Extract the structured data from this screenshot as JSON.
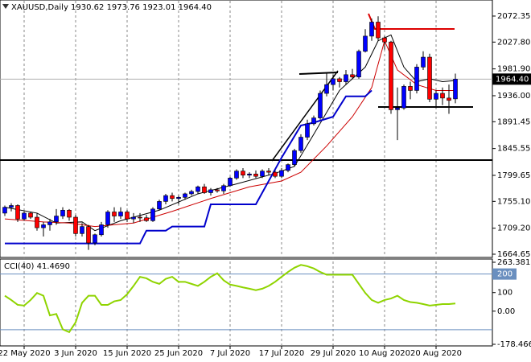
{
  "chart_data": [
    {
      "type": "candlestick",
      "title": "XAUUSD,Daily  1930.62 1973.76 1923.01 1964.40",
      "categories": [
        null,
        null,
        null,
        "22 May 2020",
        null,
        null,
        null,
        null,
        null,
        null,
        null,
        "3 Jun 2020",
        null,
        null,
        null,
        null,
        null,
        null,
        null,
        "15 Jun 2020",
        null,
        null,
        null,
        null,
        null,
        null,
        null,
        "25 Jun 2020",
        null,
        null,
        null,
        null,
        null,
        null,
        null,
        "7 Jul 2020",
        null,
        null,
        null,
        null,
        null,
        null,
        null,
        "17 Jul 2020",
        null,
        null,
        null,
        null,
        null,
        null,
        null,
        "29 Jul 2020",
        null,
        null,
        null,
        null,
        null,
        null,
        null,
        "10 Aug 2020",
        null,
        null,
        null,
        null,
        null,
        null,
        null,
        "20 Aug 2020",
        null,
        null,
        null
      ],
      "open": [
        1735,
        1745,
        1748,
        1725,
        1735,
        1728,
        1710,
        1715,
        1720,
        1730,
        1740,
        1728,
        1700,
        1712,
        1684,
        1698,
        1715,
        1737,
        1730,
        1737,
        1725,
        1728,
        1727,
        1722,
        1742,
        1755,
        1765,
        1760,
        1762,
        1768,
        1772,
        1780,
        1770,
        1775,
        1773,
        1782,
        1795,
        1807,
        1800,
        1802,
        1798,
        1807,
        1805,
        1798,
        1808,
        1818,
        1842,
        1865,
        1888,
        1898,
        1940,
        1955,
        1965,
        1960,
        1972,
        1968,
        2012,
        2038,
        2062,
        2035,
        2028,
        1912,
        1915,
        1952,
        1945,
        1985,
        2002,
        1930,
        1940,
        1932,
        1930.62
      ],
      "high": [
        1748,
        1752,
        1750,
        1738,
        1737,
        1735,
        1720,
        1725,
        1742,
        1745,
        1742,
        1732,
        1718,
        1715,
        1700,
        1720,
        1740,
        1745,
        1745,
        1740,
        1735,
        1735,
        1732,
        1745,
        1758,
        1768,
        1770,
        1765,
        1770,
        1775,
        1782,
        1785,
        1778,
        1778,
        1785,
        1797,
        1810,
        1812,
        1805,
        1808,
        1810,
        1812,
        1808,
        1812,
        1820,
        1845,
        1870,
        1895,
        1902,
        1945,
        1975,
        1972,
        1968,
        1980,
        1982,
        2015,
        2050,
        2068,
        2072,
        2038,
        2030,
        1950,
        1955,
        1960,
        1990,
        2012,
        2008,
        1945,
        1950,
        1955,
        1973.76
      ],
      "low": [
        1730,
        1738,
        1720,
        1722,
        1725,
        1705,
        1695,
        1705,
        1715,
        1725,
        1722,
        1695,
        1695,
        1672,
        1680,
        1695,
        1710,
        1720,
        1725,
        1720,
        1718,
        1720,
        1720,
        1720,
        1740,
        1750,
        1755,
        1750,
        1758,
        1765,
        1768,
        1768,
        1765,
        1770,
        1768,
        1780,
        1792,
        1795,
        1795,
        1795,
        1795,
        1800,
        1795,
        1795,
        1805,
        1815,
        1838,
        1860,
        1885,
        1895,
        1935,
        1945,
        1950,
        1955,
        1965,
        1965,
        2010,
        2030,
        2030,
        2015,
        1905,
        1860,
        1912,
        1930,
        1940,
        1980,
        1925,
        1915,
        1920,
        1905,
        1923.01
      ],
      "close": [
        1745,
        1748,
        1725,
        1735,
        1728,
        1710,
        1715,
        1720,
        1730,
        1740,
        1728,
        1700,
        1712,
        1684,
        1698,
        1715,
        1737,
        1730,
        1737,
        1725,
        1728,
        1727,
        1722,
        1742,
        1755,
        1765,
        1760,
        1762,
        1768,
        1772,
        1780,
        1770,
        1775,
        1773,
        1782,
        1795,
        1807,
        1800,
        1802,
        1798,
        1807,
        1805,
        1798,
        1808,
        1818,
        1842,
        1865,
        1888,
        1898,
        1940,
        1955,
        1965,
        1960,
        1972,
        1968,
        2012,
        2038,
        2062,
        2035,
        2028,
        1912,
        1915,
        1952,
        1945,
        1985,
        2002,
        1930,
        1940,
        1932,
        1928,
        1964.4
      ],
      "up_color": "#0000ff",
      "down_color": "#ff0000",
      "wick_color": "#000000",
      "overlays": [
        {
          "color": "#000000",
          "x": [
            0,
            5,
            8,
            12,
            14,
            18,
            24,
            30,
            36,
            42,
            45,
            48,
            52,
            56,
            58,
            60,
            62,
            64,
            66,
            68,
            70
          ],
          "values": [
            1745,
            1735,
            1718,
            1720,
            1705,
            1722,
            1740,
            1768,
            1785,
            1803,
            1815,
            1870,
            1945,
            1985,
            2030,
            2040,
            1985,
            1960,
            1965,
            1960,
            1962
          ]
        },
        {
          "color": "#cc0000",
          "x": [
            0,
            6,
            10,
            14,
            20,
            26,
            32,
            38,
            43,
            46,
            50,
            54,
            57,
            59,
            61,
            64,
            67,
            70
          ],
          "values": [
            1725,
            1720,
            1718,
            1712,
            1718,
            1738,
            1760,
            1780,
            1790,
            1805,
            1850,
            1900,
            1950,
            2030,
            1980,
            1955,
            1945,
            1945
          ]
        },
        {
          "color": "#0000cc",
          "x": [
            0,
            21,
            22,
            25,
            26,
            31,
            32,
            39,
            43,
            46,
            48,
            51,
            53,
            56,
            57
          ],
          "values": [
            1683,
            1683,
            1705,
            1705,
            1712,
            1712,
            1750,
            1750,
            1830,
            1885,
            1890,
            1900,
            1935,
            1935,
            1945
          ]
        }
      ],
      "current_price": {
        "value": 1964.4,
        "label": "1964.40"
      },
      "ylim": [
        1661.9,
        2097.1
      ],
      "yticks": [
        2072.35,
        {
          "value": 2027.8,
          "label": "2027.80"
        },
        {
          "value": 1981.9,
          "label": "1981.90"
        },
        {
          "value": 1936,
          "label": "1936.00"
        },
        1891.45,
        1845.55,
        1799.65,
        {
          "value": 1755.1,
          "label": "1755.10"
        },
        {
          "value": 1709.2,
          "label": "1709.20"
        },
        1664.65
      ]
    },
    {
      "type": "line",
      "title": "CCI(40) 41.4690",
      "color": "#8fd400",
      "values": [
        83,
        60,
        34,
        30,
        60,
        98,
        83,
        -23,
        -15,
        -98,
        -113,
        -60,
        45,
        83,
        83,
        34,
        34,
        53,
        60,
        91,
        136,
        185,
        177,
        158,
        147,
        174,
        185,
        158,
        158,
        147,
        136,
        158,
        185,
        204,
        166,
        143,
        136,
        128,
        121,
        113,
        121,
        136,
        158,
        185,
        211,
        234,
        249,
        242,
        230,
        211,
        196,
        196,
        196,
        196,
        196,
        147,
        98,
        60,
        45,
        60,
        68,
        83,
        60,
        49,
        45,
        38,
        30,
        34,
        38,
        38,
        41.469
      ],
      "ylim": [
        -178.4664,
        263.3813
      ],
      "yticks": [
        263.3813,
        200,
        100,
        {
          "value": 0,
          "label": "0.00"
        },
        -178.4664
      ],
      "levels": [
        200,
        -100
      ],
      "level_color": "#6a8fbf"
    }
  ]
}
